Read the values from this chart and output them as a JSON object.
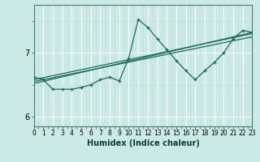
{
  "xlabel": "Humidex (Indice chaleur)",
  "bg_color": "#cceae5",
  "line_color": "#1a6b5a",
  "grid_major_color": "#ffffff",
  "grid_minor_color": "#b8ddd8",
  "xlim": [
    0,
    23
  ],
  "ylim": [
    5.85,
    7.75
  ],
  "yticks": [
    6,
    7
  ],
  "xtick_labels": [
    "0",
    "1",
    "2",
    "3",
    "4",
    "5",
    "6",
    "7",
    "8",
    "9",
    "10",
    "11",
    "12",
    "13",
    "14",
    "15",
    "16",
    "17",
    "18",
    "19",
    "20",
    "21",
    "22",
    "23"
  ],
  "data_line": {
    "x": [
      0,
      1,
      2,
      3,
      4,
      5,
      6,
      7,
      8,
      9,
      10,
      11,
      12,
      13,
      14,
      15,
      16,
      17,
      18,
      19,
      20,
      21,
      22,
      23
    ],
    "y": [
      6.62,
      6.58,
      6.43,
      6.43,
      6.43,
      6.46,
      6.5,
      6.58,
      6.62,
      6.56,
      6.92,
      7.52,
      7.4,
      7.22,
      7.05,
      6.88,
      6.72,
      6.58,
      6.72,
      6.85,
      7.0,
      7.22,
      7.35,
      7.32
    ]
  },
  "reg_lines": [
    {
      "x": [
        0,
        23
      ],
      "y": [
        6.52,
        7.32
      ]
    },
    {
      "x": [
        0,
        23
      ],
      "y": [
        6.55,
        7.25
      ]
    },
    {
      "x": [
        0,
        23
      ],
      "y": [
        6.58,
        7.3
      ]
    }
  ]
}
